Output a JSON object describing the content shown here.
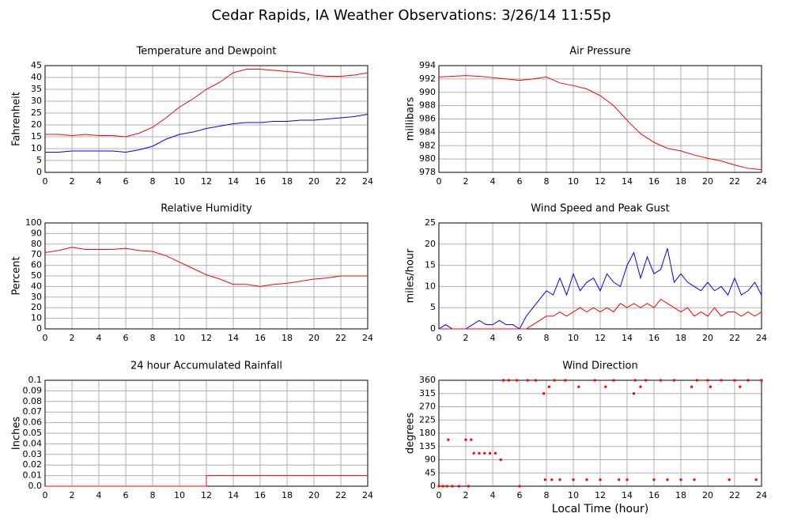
{
  "title": "Cedar Rapids, IA Weather Observations: 3/26/14 11:55p",
  "chart_data": [
    {
      "type": "line",
      "title": "Temperature and Dewpoint",
      "ylabel": "Fahrenheit",
      "x": [
        0,
        1,
        2,
        3,
        4,
        5,
        6,
        7,
        8,
        9,
        10,
        11,
        12,
        13,
        14,
        15,
        16,
        17,
        18,
        19,
        20,
        21,
        22,
        23,
        24
      ],
      "series": [
        {
          "color": "#ff0000",
          "values": [
            16,
            16,
            15.5,
            16,
            15.5,
            15.5,
            15,
            16.5,
            19,
            23,
            27.5,
            31,
            35,
            38,
            42,
            43.5,
            43.5,
            43,
            42.5,
            42,
            41,
            40.5,
            40.5,
            41,
            42
          ]
        },
        {
          "color": "#0000ff",
          "values": [
            8.5,
            8.5,
            9,
            9,
            9,
            9,
            8.5,
            9.5,
            11,
            14,
            16,
            17,
            18.5,
            19.5,
            20.5,
            21,
            21,
            21.5,
            21.5,
            22,
            22,
            22.5,
            23,
            23.5,
            24.5
          ]
        }
      ],
      "xlim": [
        0,
        24
      ],
      "xticks": [
        0,
        2,
        4,
        6,
        8,
        10,
        12,
        14,
        16,
        18,
        20,
        22,
        24
      ],
      "ylim": [
        0,
        45
      ],
      "yticks": [
        0,
        5,
        10,
        15,
        20,
        25,
        30,
        35,
        40,
        45
      ],
      "grid": true
    },
    {
      "type": "line",
      "title": "Air Pressure",
      "ylabel": "millibars",
      "x": [
        0,
        1,
        2,
        3,
        4,
        5,
        6,
        7,
        8,
        9,
        10,
        11,
        12,
        13,
        14,
        15,
        16,
        17,
        18,
        19,
        20,
        21,
        22,
        23,
        24
      ],
      "series": [
        {
          "color": "#ff0000",
          "values": [
            992.3,
            992.4,
            992.5,
            992.4,
            992.2,
            992,
            991.8,
            992,
            992.3,
            991.4,
            991,
            990.5,
            989.5,
            988,
            985.8,
            983.8,
            982.5,
            981.6,
            981.2,
            980.6,
            980.1,
            979.7,
            979.1,
            978.6,
            978.4
          ]
        }
      ],
      "xlim": [
        0,
        24
      ],
      "xticks": [
        0,
        2,
        4,
        6,
        8,
        10,
        12,
        14,
        16,
        18,
        20,
        22,
        24
      ],
      "ylim": [
        978,
        994
      ],
      "yticks": [
        978,
        980,
        982,
        984,
        986,
        988,
        990,
        992,
        994
      ],
      "grid": true
    },
    {
      "type": "line",
      "title": "Relative Humidity",
      "ylabel": "Percent",
      "x": [
        0,
        1,
        2,
        3,
        4,
        5,
        6,
        7,
        8,
        9,
        10,
        11,
        12,
        13,
        14,
        15,
        16,
        17,
        18,
        19,
        20,
        21,
        22,
        23,
        24
      ],
      "series": [
        {
          "color": "#ff0000",
          "values": [
            72,
            74,
            77,
            75,
            75,
            75,
            76,
            74,
            73,
            69,
            63,
            57,
            51,
            47,
            42,
            42,
            40,
            42,
            43,
            45,
            47,
            48,
            50,
            50,
            50
          ]
        }
      ],
      "xlim": [
        0,
        24
      ],
      "xticks": [
        0,
        2,
        4,
        6,
        8,
        10,
        12,
        14,
        16,
        18,
        20,
        22,
        24
      ],
      "ylim": [
        0,
        100
      ],
      "yticks": [
        0,
        10,
        20,
        30,
        40,
        50,
        60,
        70,
        80,
        90,
        100
      ],
      "grid": true
    },
    {
      "type": "line",
      "title": "Wind Speed and Peak Gust",
      "ylabel": "miles/hour",
      "x": [
        0,
        0.5,
        1,
        1.5,
        2,
        2.5,
        3,
        3.5,
        4,
        4.5,
        5,
        5.5,
        6,
        6.5,
        7,
        7.5,
        8,
        8.5,
        9,
        9.5,
        10,
        10.5,
        11,
        11.5,
        12,
        12.5,
        13,
        13.5,
        14,
        14.5,
        15,
        15.5,
        16,
        16.5,
        17,
        17.5,
        18,
        18.5,
        19,
        19.5,
        20,
        20.5,
        21,
        21.5,
        22,
        22.5,
        23,
        23.5,
        24
      ],
      "series": [
        {
          "color": "#0000ff",
          "values": [
            0,
            1,
            0,
            0,
            0,
            1,
            2,
            1,
            1,
            2,
            1,
            1,
            0,
            3,
            5,
            7,
            9,
            8,
            12,
            8,
            13,
            9,
            11,
            12,
            9,
            13,
            11,
            10,
            15,
            18,
            12,
            17,
            13,
            14,
            19,
            11,
            13,
            11,
            10,
            9,
            11,
            9,
            10,
            8,
            12,
            8,
            9,
            11,
            8
          ]
        },
        {
          "color": "#ff0000",
          "values": [
            0,
            0,
            0,
            0,
            0,
            0,
            0,
            0,
            0,
            0,
            0,
            0,
            0,
            0,
            1,
            2,
            3,
            3,
            4,
            3,
            4,
            5,
            4,
            5,
            4,
            5,
            4,
            6,
            5,
            6,
            5,
            6,
            5,
            7,
            6,
            5,
            4,
            5,
            3,
            4,
            3,
            5,
            3,
            4,
            4,
            3,
            4,
            3,
            4
          ]
        }
      ],
      "xlim": [
        0,
        24
      ],
      "xticks": [
        0,
        2,
        4,
        6,
        8,
        10,
        12,
        14,
        16,
        18,
        20,
        22,
        24
      ],
      "ylim": [
        0,
        25
      ],
      "yticks": [
        0,
        5,
        10,
        15,
        20,
        25
      ],
      "grid": true
    },
    {
      "type": "line",
      "title": "24 hour Accumulated Rainfall",
      "ylabel": "Inches",
      "x": [
        0,
        12,
        12,
        24
      ],
      "series": [
        {
          "color": "#ff0000",
          "values": [
            0,
            0,
            0.01,
            0.01
          ]
        }
      ],
      "xlim": [
        0,
        24
      ],
      "xticks": [
        0,
        2,
        4,
        6,
        8,
        10,
        12,
        14,
        16,
        18,
        20,
        22,
        24
      ],
      "ylim": [
        0,
        0.1
      ],
      "yticks": [
        {
          "value": 0,
          "label": "0.0"
        },
        0.01,
        0.02,
        0.03,
        0.04,
        0.05,
        0.06,
        0.07,
        0.08,
        0.09,
        0.1
      ],
      "grid": true
    },
    {
      "type": "scatter",
      "title": "Wind Direction",
      "ylabel": "degrees",
      "xlabel": "Local Time (hour)",
      "x": [
        0,
        0.3,
        0.6,
        0.7,
        1,
        1.5,
        2,
        2.2,
        2.4,
        2.6,
        3,
        3.4,
        3.8,
        4.2,
        4.6,
        4.8,
        5.2,
        5.8,
        6,
        6.6,
        7.2,
        7.8,
        7.9,
        8.2,
        8.4,
        8.6,
        9,
        9.4,
        10,
        10.4,
        11,
        11.6,
        12,
        12.4,
        13,
        13.4,
        14,
        14.5,
        14.6,
        15,
        15.4,
        16,
        16.5,
        17,
        17.5,
        18,
        18.8,
        19,
        19.2,
        20,
        20.2,
        21,
        21.6,
        22,
        22.4,
        23,
        23.6,
        24
      ],
      "series": [
        {
          "color": "#ff0000",
          "values": [
            0,
            0,
            0,
            158,
            0,
            0,
            158,
            0,
            158,
            112,
            112,
            112,
            112,
            112,
            90,
            360,
            360,
            360,
            0,
            360,
            360,
            315,
            22,
            338,
            22,
            360,
            22,
            360,
            22,
            338,
            22,
            360,
            22,
            338,
            360,
            22,
            22,
            315,
            360,
            338,
            360,
            22,
            360,
            22,
            360,
            22,
            338,
            22,
            360,
            360,
            338,
            360,
            22,
            360,
            338,
            360,
            22,
            360
          ]
        }
      ],
      "xlim": [
        0,
        24
      ],
      "xticks": [
        0,
        2,
        4,
        6,
        8,
        10,
        12,
        14,
        16,
        18,
        20,
        22,
        24
      ],
      "ylim": [
        0,
        360
      ],
      "yticks": [
        0,
        45,
        90,
        135,
        180,
        225,
        270,
        315,
        360
      ],
      "grid": true
    }
  ]
}
